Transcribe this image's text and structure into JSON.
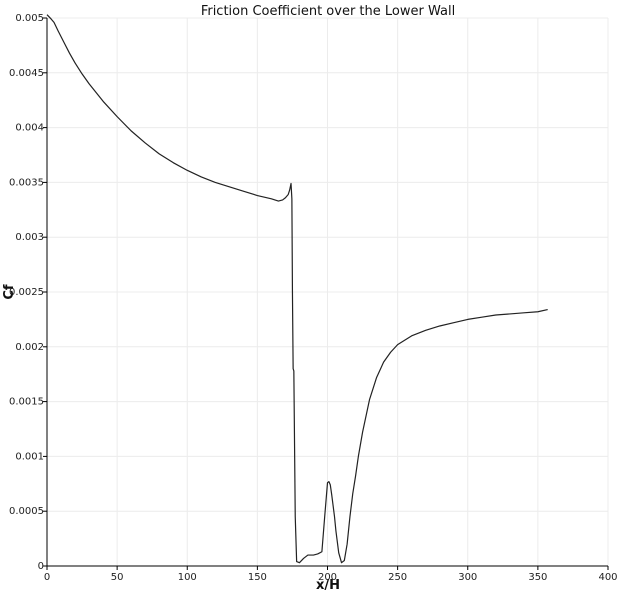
{
  "chart_data": {
    "type": "line",
    "title": "Friction Coefficient over the Lower Wall",
    "xlabel": "x/H",
    "ylabel": "Cf",
    "xlim": [
      0,
      400
    ],
    "ylim": [
      0,
      0.005
    ],
    "x_ticks": [
      0,
      50,
      100,
      150,
      200,
      250,
      300,
      350,
      400
    ],
    "x_tick_labels": [
      "0",
      "50",
      "100",
      "150",
      "200",
      "250",
      "300",
      "350",
      "400"
    ],
    "y_ticks": [
      0,
      0.0005,
      0.001,
      0.0015,
      0.002,
      0.0025,
      0.003,
      0.0035,
      0.004,
      0.0045,
      0.005
    ],
    "y_tick_labels": [
      "0",
      "0.0005",
      "0.001",
      "0.0015",
      "0.002",
      "0.0025",
      "0.003",
      "0.0035",
      "0.004",
      "0.0045",
      "0.005"
    ],
    "grid": true,
    "legend": false,
    "line_color": "#222222",
    "series": [
      {
        "x": [
          0,
          3,
          5,
          8,
          12,
          16,
          20,
          25,
          30,
          40,
          50,
          60,
          70,
          80,
          90,
          100,
          110,
          120,
          130,
          140,
          150,
          160,
          165,
          168,
          170,
          172,
          173,
          174,
          174.6,
          175,
          175.5,
          176,
          177,
          178,
          180,
          183,
          186,
          190,
          193,
          196,
          198,
          200,
          201,
          202,
          203,
          204,
          205,
          206,
          208,
          210,
          212,
          214,
          216,
          218,
          220,
          222,
          225,
          230,
          235,
          240,
          245,
          250,
          255,
          260,
          270,
          280,
          290,
          300,
          310,
          320,
          330,
          340,
          350,
          357
        ],
        "y": [
          0.00503,
          0.00499,
          0.00496,
          0.00488,
          0.00478,
          0.00468,
          0.00459,
          0.00449,
          0.0044,
          0.00424,
          0.0041,
          0.00397,
          0.00386,
          0.00376,
          0.00368,
          0.00361,
          0.00355,
          0.0035,
          0.00346,
          0.00342,
          0.00338,
          0.00335,
          0.00333,
          0.00334,
          0.00336,
          0.00339,
          0.00343,
          0.00349,
          0.00335,
          0.0025,
          0.0018,
          0.00178,
          0.00045,
          4e-05,
          3e-05,
          7e-05,
          0.0001,
          0.0001,
          0.00011,
          0.00013,
          0.00045,
          0.00076,
          0.00077,
          0.00074,
          0.00065,
          0.00055,
          0.00045,
          0.00032,
          0.00012,
          3e-05,
          5e-05,
          0.0002,
          0.00045,
          0.00066,
          0.00082,
          0.001,
          0.00122,
          0.00152,
          0.00172,
          0.00186,
          0.00195,
          0.00202,
          0.00206,
          0.0021,
          0.00215,
          0.00219,
          0.00222,
          0.00225,
          0.00227,
          0.00229,
          0.0023,
          0.00231,
          0.00232,
          0.00234
        ]
      }
    ]
  }
}
